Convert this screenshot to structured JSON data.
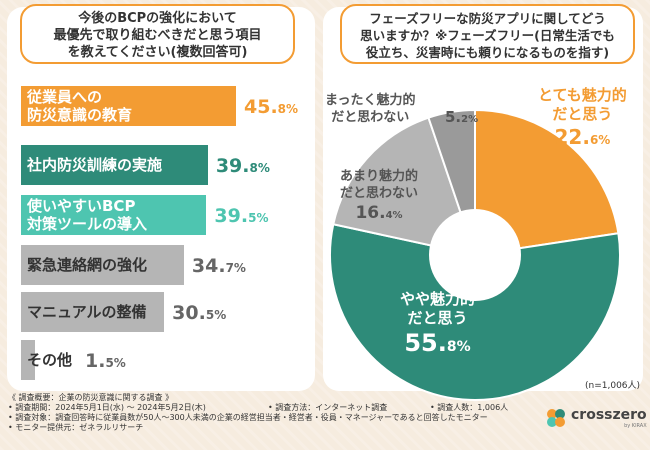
{
  "left_panel": {
    "question": [
      "今後のBCPの強化において",
      "最優先で取り組むべきだと思う項目",
      "を教えてください(複数回答可)"
    ]
  },
  "right_panel": {
    "question": [
      "フェーズフリーな防災アプリに関してどう",
      "思いますか？※フェーズフリー(日常生活でも",
      "役立ち、災害時にも頼りになるものを指す)"
    ],
    "n_label": "(n=1,006人)"
  },
  "chart_data": [
    {
      "type": "bar",
      "orientation": "horizontal",
      "categories": [
        "従業員への防災意識の教育",
        "社内防災訓練の実施",
        "使いやすいBCP対策ツールの導入",
        "緊急連絡網の強化",
        "マニュアルの整備",
        "その他"
      ],
      "category_lines": [
        [
          "従業員への",
          "防災意識の教育"
        ],
        [
          "社内防災訓練の実施"
        ],
        [
          "使いやすいBCP",
          "対策ツールの導入"
        ],
        [
          "緊急連絡網の強化"
        ],
        [
          "マニュアルの整備"
        ],
        [
          "その他"
        ]
      ],
      "values": [
        45.8,
        39.8,
        39.5,
        34.7,
        30.5,
        1.5
      ],
      "value_int": [
        "45.",
        "39.",
        "39.",
        "34.",
        "30.",
        "1."
      ],
      "value_dec": [
        "8%",
        "8%",
        "5%",
        "7%",
        "5%",
        "5%"
      ],
      "colors": [
        "#f39c33",
        "#2e8b79",
        "#4ec5b0",
        "#b5b5b5",
        "#b5b5b5",
        "#b5b5b5"
      ],
      "unit": "%"
    },
    {
      "type": "pie",
      "slices": [
        {
          "label": [
            "とても魅力的",
            "だと思う"
          ],
          "value": 22.6,
          "int": "22.",
          "dec": "6%",
          "color": "#f39c33"
        },
        {
          "label": [
            "やや魅力的",
            "だと思う"
          ],
          "value": 55.8,
          "int": "55.",
          "dec": "8%",
          "color": "#2e8b79"
        },
        {
          "label": [
            "あまり魅力的",
            "だと思わない"
          ],
          "value": 16.4,
          "int": "16.",
          "dec": "4%",
          "color": "#b5b5b5"
        },
        {
          "label": [
            "まったく魅力的",
            "だと思わない"
          ],
          "value": 5.2,
          "int": "5.",
          "dec": "2%",
          "color": "#9a9a9a"
        }
      ],
      "unit": "%"
    }
  ],
  "footer": {
    "title": "《 調査概要：企業の防災意識に関する調査 》",
    "period": "• 調査期間：2024年5月1日(水) ～ 2024年5月2日(木)",
    "method": "• 調査方法：インターネット調査",
    "count": "• 調査人数：1,006人",
    "target": "• 調査対象：調査回答時に従業員数が50人～300人未満の企業の経営担当者・経営者・役員・マネージャーであると回答したモニター",
    "provider": "• モニター提供元：ゼネラルリサーチ"
  },
  "logo": {
    "text": "crosszero",
    "sub": "by KIRAX"
  }
}
